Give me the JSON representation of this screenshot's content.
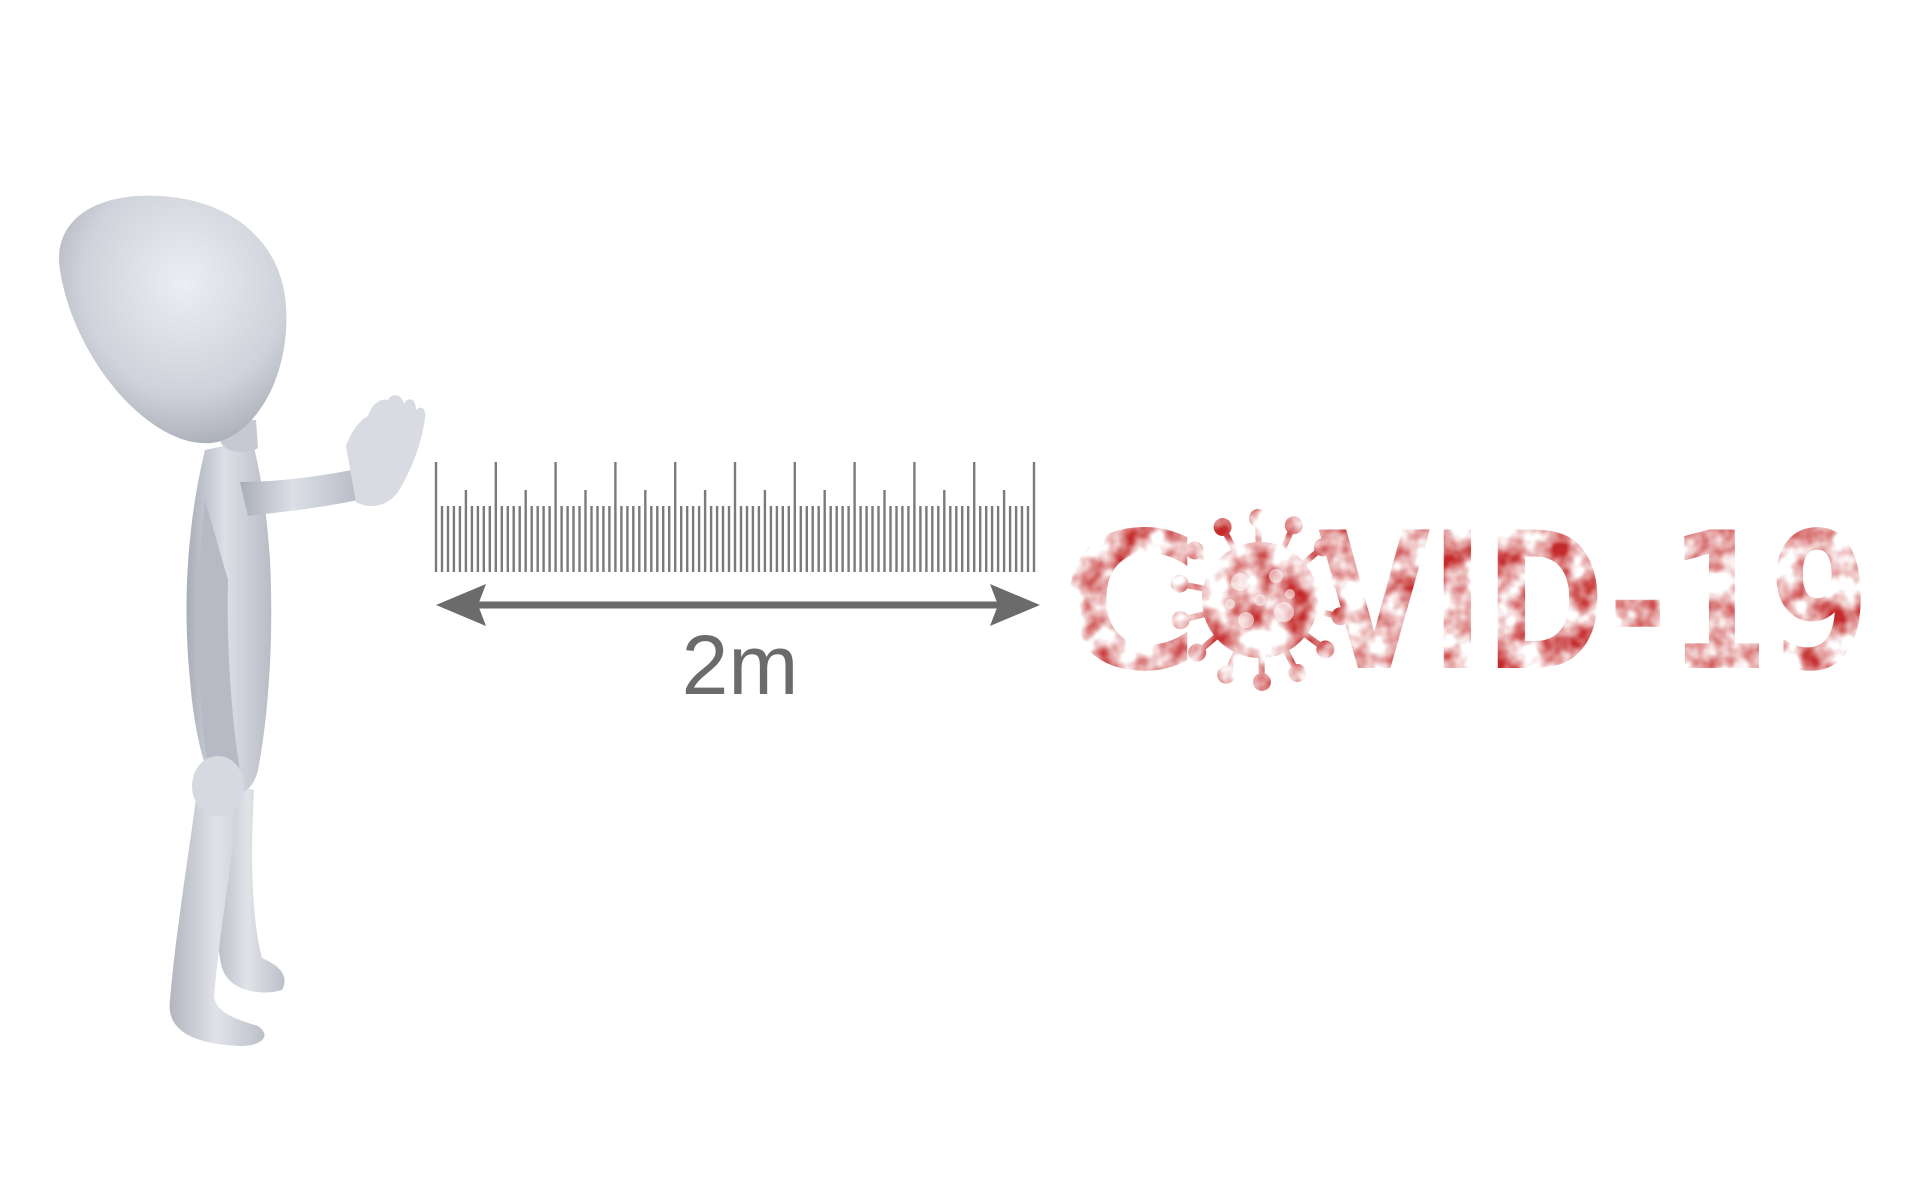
{
  "distance": {
    "label": "2m",
    "color": "#6b6b6b"
  },
  "ruler": {
    "major_ticks": 10,
    "minor_per_major": 5,
    "color": "#7a7a7a"
  },
  "headline": {
    "text_before": "C",
    "text_after": "VID-19",
    "virus_icon": "coronavirus-icon",
    "color": "#c42a2a",
    "texture": "distressed-stamp"
  },
  "figure": {
    "description_icon": "stick-figure-stop-gesture-icon",
    "color": "#d4d6de",
    "shade": "#aeb1bb"
  }
}
